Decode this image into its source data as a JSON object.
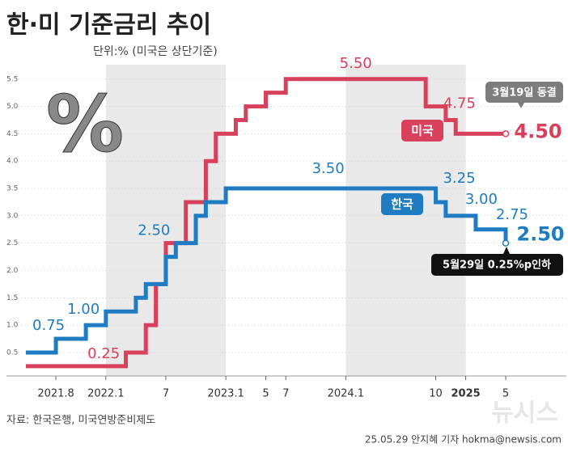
{
  "chart_data": {
    "type": "step",
    "title": "한·미 기준금리 추이",
    "subtitle": "단위:% (미국은 상단기준)",
    "icon_text": "%",
    "source": "자료: 한국은행, 미국연방준비제도",
    "credit": "25.05.29 안지혜 기자 hokma@newsis.com",
    "watermark": "뉴시스",
    "annotations": [
      "3월19일 동결",
      "5월29일 0.25%p인하"
    ],
    "categories": [
      null,
      null,
      null,
      "2021.8",
      null,
      null,
      null,
      null,
      "2022.1",
      null,
      null,
      null,
      null,
      null,
      "7",
      null,
      null,
      null,
      null,
      null,
      "2023.1",
      null,
      null,
      null,
      "5",
      null,
      "7",
      null,
      null,
      null,
      null,
      null,
      "2024.1",
      null,
      null,
      null,
      null,
      null,
      null,
      null,
      null,
      "10",
      null,
      null,
      "2025",
      null,
      null,
      null,
      "5"
    ],
    "ylim": [
      0.1,
      5.6
    ],
    "yticks": [
      0.5,
      {
        "value": 1,
        "label": "1.0"
      },
      1.5,
      {
        "value": 2,
        "label": "2.0"
      },
      2.5,
      {
        "value": 3,
        "label": "3.0"
      },
      3.5,
      {
        "value": 4,
        "label": "4.0"
      },
      4.5,
      {
        "value": 5,
        "label": "5.0"
      },
      5.5
    ],
    "grid": true,
    "series": [
      {
        "name": "미국",
        "color": "#d8415c",
        "values": [
          0.25,
          0.25,
          0.25,
          0.25,
          0.25,
          0.25,
          0.25,
          0.25,
          0.25,
          0.25,
          0.5,
          0.5,
          1,
          1.75,
          2.5,
          2.5,
          3.25,
          3.25,
          4,
          4.5,
          4.5,
          4.75,
          5,
          5,
          5.25,
          5.25,
          5.5,
          5.5,
          5.5,
          5.5,
          5.5,
          5.5,
          5.5,
          5.5,
          5.5,
          5.5,
          5.5,
          5.5,
          5.5,
          5.5,
          5,
          5,
          4.75,
          4.5,
          4.5,
          4.5,
          4.5,
          4.5,
          4.5
        ],
        "value_labels": [
          null,
          null,
          null,
          null,
          null,
          null,
          "0.25",
          null,
          null,
          null,
          null,
          null,
          null,
          null,
          null,
          null,
          null,
          null,
          null,
          null,
          null,
          null,
          null,
          null,
          null,
          null,
          null,
          null,
          null,
          null,
          null,
          null,
          null,
          "5.50",
          null,
          null,
          null,
          null,
          null,
          null,
          null,
          null,
          "4.75",
          null,
          null,
          null,
          null,
          null,
          "4.50"
        ]
      },
      {
        "name": "한국",
        "color": "#1f7cc2",
        "values": [
          0.5,
          0.5,
          0.5,
          0.75,
          0.75,
          0.75,
          1,
          1,
          1.25,
          1.25,
          1.25,
          1.5,
          1.75,
          1.75,
          2.25,
          2.5,
          2.5,
          3,
          3.25,
          3.25,
          3.5,
          3.5,
          3.5,
          3.5,
          3.5,
          3.5,
          3.5,
          3.5,
          3.5,
          3.5,
          3.5,
          3.5,
          3.5,
          3.5,
          3.5,
          3.5,
          3.5,
          3.5,
          3.5,
          3.5,
          3.5,
          3.25,
          3,
          3,
          3,
          2.75,
          2.75,
          2.75,
          2.5
        ],
        "value_labels": [
          null,
          null,
          null,
          "0.75",
          null,
          null,
          "1.00",
          null,
          null,
          null,
          null,
          null,
          null,
          null,
          null,
          "2.50",
          null,
          null,
          null,
          null,
          null,
          null,
          null,
          null,
          null,
          null,
          null,
          null,
          null,
          null,
          "3.50",
          null,
          null,
          null,
          null,
          null,
          null,
          null,
          null,
          null,
          null,
          "3.25",
          "3.00",
          null,
          null,
          "2.75",
          null,
          null,
          "2.50"
        ]
      }
    ]
  }
}
